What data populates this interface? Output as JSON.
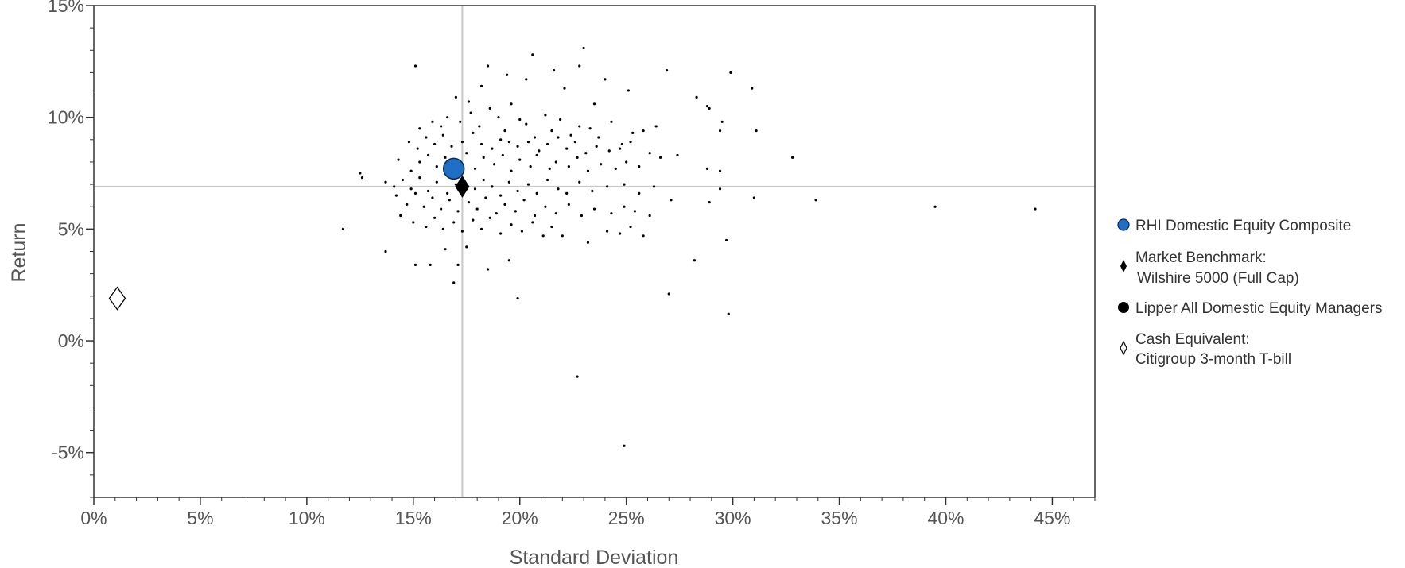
{
  "chart_data": {
    "type": "scatter",
    "title": "",
    "xlabel": "Standard Deviation",
    "ylabel": "Return",
    "xlim": [
      0,
      47
    ],
    "ylim": [
      -7,
      15
    ],
    "x_ticks": [
      "0%",
      "5%",
      "10%",
      "15%",
      "20%",
      "25%",
      "30%",
      "35%",
      "40%",
      "45%"
    ],
    "y_ticks": [
      "-5%",
      "0%",
      "5%",
      "10%",
      "15%"
    ],
    "grid": false,
    "reference_lines": {
      "x": 17.3,
      "y": 6.9
    },
    "legend_position": "right",
    "colors": {
      "composite": "#1f6fc4",
      "benchmark": "#000000",
      "managers": "#000000",
      "cash": "#ffffff",
      "reference": "#c8c8c8",
      "axis": "#333333"
    },
    "series": [
      {
        "name": "RHI Domestic Equity Composite",
        "marker": "circle",
        "points": [
          [
            16.9,
            7.7
          ]
        ]
      },
      {
        "name": "Market Benchmark:",
        "name_line2": "Wilshire 5000 (Full Cap)",
        "marker": "diamond",
        "points": [
          [
            17.3,
            6.9
          ]
        ]
      },
      {
        "name": "Lipper All Domestic Equity Managers",
        "marker": "dot",
        "points": [
          [
            15.1,
            12.3
          ],
          [
            17.0,
            10.9
          ],
          [
            17.6,
            10.7
          ],
          [
            18.2,
            11.4
          ],
          [
            18.5,
            12.3
          ],
          [
            19.4,
            11.9
          ],
          [
            20.3,
            11.7
          ],
          [
            20.6,
            12.8
          ],
          [
            21.6,
            12.1
          ],
          [
            22.1,
            11.3
          ],
          [
            22.8,
            12.3
          ],
          [
            23.0,
            13.1
          ],
          [
            23.5,
            10.6
          ],
          [
            24.0,
            11.7
          ],
          [
            25.1,
            11.2
          ],
          [
            26.9,
            12.1
          ],
          [
            28.3,
            10.9
          ],
          [
            28.9,
            10.4
          ],
          [
            29.9,
            12.0
          ],
          [
            30.9,
            11.3
          ],
          [
            15.3,
            9.5
          ],
          [
            15.9,
            9.8
          ],
          [
            16.3,
            9.6
          ],
          [
            16.6,
            10.0
          ],
          [
            17.2,
            9.8
          ],
          [
            17.7,
            10.2
          ],
          [
            18.1,
            9.6
          ],
          [
            18.6,
            10.4
          ],
          [
            19.0,
            10.0
          ],
          [
            19.3,
            9.4
          ],
          [
            19.6,
            10.6
          ],
          [
            20.0,
            9.9
          ],
          [
            20.3,
            9.7
          ],
          [
            20.7,
            9.1
          ],
          [
            21.2,
            10.1
          ],
          [
            21.5,
            9.4
          ],
          [
            21.9,
            9.9
          ],
          [
            22.4,
            9.2
          ],
          [
            22.8,
            9.6
          ],
          [
            23.3,
            9.5
          ],
          [
            23.7,
            9.1
          ],
          [
            24.3,
            9.8
          ],
          [
            24.8,
            8.8
          ],
          [
            25.3,
            9.3
          ],
          [
            25.8,
            9.4
          ],
          [
            26.4,
            9.6
          ],
          [
            28.8,
            10.5
          ],
          [
            29.4,
            9.4
          ],
          [
            29.5,
            9.8
          ],
          [
            31.1,
            9.4
          ],
          [
            14.8,
            8.9
          ],
          [
            15.2,
            8.6
          ],
          [
            15.6,
            9.1
          ],
          [
            16.0,
            8.8
          ],
          [
            16.4,
            9.2
          ],
          [
            16.8,
            8.7
          ],
          [
            17.3,
            8.9
          ],
          [
            17.8,
            9.3
          ],
          [
            18.2,
            8.8
          ],
          [
            18.7,
            8.6
          ],
          [
            19.1,
            9.0
          ],
          [
            19.5,
            8.9
          ],
          [
            19.9,
            8.7
          ],
          [
            20.4,
            8.9
          ],
          [
            20.9,
            8.5
          ],
          [
            21.3,
            8.8
          ],
          [
            21.8,
            9.1
          ],
          [
            22.2,
            8.6
          ],
          [
            22.6,
            8.9
          ],
          [
            23.1,
            8.4
          ],
          [
            23.6,
            8.7
          ],
          [
            24.2,
            8.5
          ],
          [
            24.7,
            8.6
          ],
          [
            25.2,
            8.9
          ],
          [
            26.1,
            8.4
          ],
          [
            32.8,
            8.2
          ],
          [
            14.3,
            8.1
          ],
          [
            14.9,
            7.6
          ],
          [
            15.3,
            8.0
          ],
          [
            15.7,
            8.3
          ],
          [
            16.1,
            7.8
          ],
          [
            16.5,
            8.2
          ],
          [
            17.0,
            7.9
          ],
          [
            17.5,
            8.4
          ],
          [
            17.9,
            7.7
          ],
          [
            18.3,
            8.2
          ],
          [
            18.8,
            7.9
          ],
          [
            19.2,
            8.3
          ],
          [
            19.6,
            7.6
          ],
          [
            20.0,
            8.1
          ],
          [
            20.5,
            7.8
          ],
          [
            20.8,
            8.3
          ],
          [
            21.4,
            7.7
          ],
          [
            21.7,
            8.0
          ],
          [
            22.3,
            7.8
          ],
          [
            22.7,
            8.2
          ],
          [
            23.2,
            7.6
          ],
          [
            23.8,
            7.9
          ],
          [
            24.5,
            7.7
          ],
          [
            25.0,
            8.0
          ],
          [
            25.6,
            7.8
          ],
          [
            26.6,
            8.2
          ],
          [
            27.4,
            8.3
          ],
          [
            28.8,
            7.7
          ],
          [
            29.4,
            7.6
          ],
          [
            12.5,
            7.5
          ],
          [
            12.6,
            7.3
          ],
          [
            13.7,
            7.1
          ],
          [
            14.1,
            6.9
          ],
          [
            14.5,
            7.2
          ],
          [
            14.9,
            6.8
          ],
          [
            15.3,
            7.3
          ],
          [
            15.7,
            6.7
          ],
          [
            16.1,
            7.1
          ],
          [
            16.6,
            6.6
          ],
          [
            17.0,
            7.0
          ],
          [
            17.9,
            6.8
          ],
          [
            18.3,
            7.2
          ],
          [
            18.7,
            6.9
          ],
          [
            19.1,
            6.5
          ],
          [
            19.5,
            7.1
          ],
          [
            19.9,
            6.7
          ],
          [
            20.4,
            7.0
          ],
          [
            20.8,
            6.6
          ],
          [
            21.3,
            7.2
          ],
          [
            21.8,
            6.8
          ],
          [
            22.2,
            6.6
          ],
          [
            22.8,
            7.1
          ],
          [
            23.4,
            6.7
          ],
          [
            24.1,
            6.9
          ],
          [
            24.9,
            7.0
          ],
          [
            25.6,
            6.6
          ],
          [
            26.3,
            6.9
          ],
          [
            27.1,
            6.3
          ],
          [
            28.9,
            6.2
          ],
          [
            29.4,
            6.8
          ],
          [
            31.0,
            6.4
          ],
          [
            33.9,
            6.3
          ],
          [
            14.2,
            6.5
          ],
          [
            14.7,
            6.1
          ],
          [
            15.1,
            6.6
          ],
          [
            15.5,
            6.0
          ],
          [
            15.9,
            6.4
          ],
          [
            16.3,
            5.9
          ],
          [
            16.7,
            6.3
          ],
          [
            17.1,
            5.8
          ],
          [
            17.6,
            6.2
          ],
          [
            18.0,
            5.9
          ],
          [
            18.4,
            6.4
          ],
          [
            18.9,
            5.7
          ],
          [
            19.3,
            6.1
          ],
          [
            19.8,
            5.8
          ],
          [
            20.2,
            6.3
          ],
          [
            20.7,
            5.6
          ],
          [
            21.2,
            6.0
          ],
          [
            21.7,
            5.7
          ],
          [
            22.3,
            6.1
          ],
          [
            22.9,
            5.6
          ],
          [
            23.5,
            5.9
          ],
          [
            24.3,
            5.7
          ],
          [
            24.9,
            6.0
          ],
          [
            25.4,
            5.8
          ],
          [
            26.1,
            5.6
          ],
          [
            39.5,
            6.0
          ],
          [
            44.2,
            5.9
          ],
          [
            11.7,
            5.0
          ],
          [
            14.4,
            5.6
          ],
          [
            15.0,
            5.3
          ],
          [
            15.6,
            5.1
          ],
          [
            16.0,
            5.5
          ],
          [
            16.4,
            5.0
          ],
          [
            16.9,
            5.3
          ],
          [
            17.3,
            4.9
          ],
          [
            17.8,
            5.4
          ],
          [
            18.2,
            5.0
          ],
          [
            18.6,
            5.5
          ],
          [
            19.1,
            4.8
          ],
          [
            19.6,
            5.2
          ],
          [
            20.1,
            4.9
          ],
          [
            20.6,
            5.3
          ],
          [
            21.1,
            4.7
          ],
          [
            21.5,
            5.1
          ],
          [
            22.0,
            4.7
          ],
          [
            23.2,
            4.4
          ],
          [
            24.1,
            4.9
          ],
          [
            24.7,
            4.8
          ],
          [
            25.2,
            5.1
          ],
          [
            25.8,
            4.7
          ],
          [
            29.7,
            4.5
          ],
          [
            13.7,
            4.0
          ],
          [
            15.1,
            3.4
          ],
          [
            15.8,
            3.4
          ],
          [
            16.5,
            4.1
          ],
          [
            17.1,
            3.4
          ],
          [
            17.5,
            4.2
          ],
          [
            18.5,
            3.2
          ],
          [
            19.5,
            3.6
          ],
          [
            28.2,
            3.6
          ],
          [
            16.9,
            2.6
          ],
          [
            19.9,
            1.9
          ],
          [
            27.0,
            2.1
          ],
          [
            29.8,
            1.2
          ],
          [
            22.7,
            -1.6
          ],
          [
            24.9,
            -4.7
          ]
        ]
      },
      {
        "name": "Cash Equivalent:",
        "name_line2": "Citigroup 3-month T-bill",
        "marker": "open-diamond",
        "points": [
          [
            1.1,
            1.9
          ]
        ]
      }
    ]
  }
}
